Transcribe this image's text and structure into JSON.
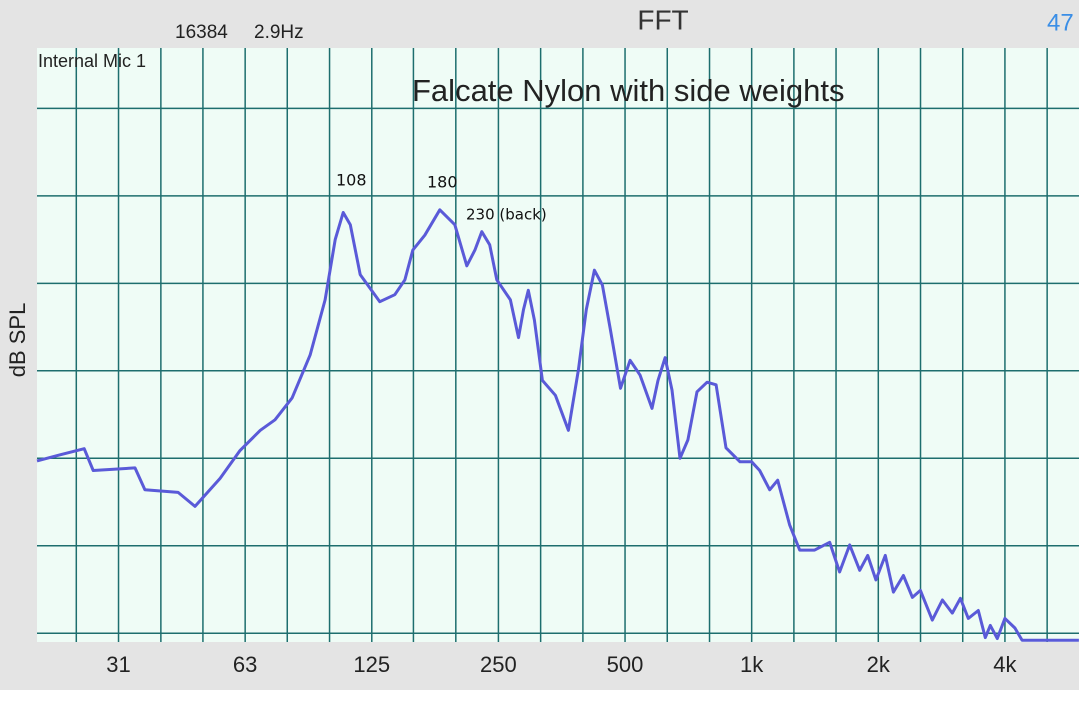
{
  "chart_data": {
    "type": "line",
    "status_left": [
      "16384",
      "2.9Hz"
    ],
    "app_title": "FFT",
    "status_right": "47",
    "input": "Internal Mic 1",
    "title": "Falcate Nylon with side weights",
    "y_label": "dB SPL",
    "annotations": [
      "108",
      "180",
      "230 (back)"
    ],
    "x": [
      20.0,
      22.7,
      25.9,
      27.2,
      34.2,
      36.1,
      43.3,
      47.5,
      54.5,
      60.8,
      67.9,
      73.6,
      80.8,
      89.2,
      96.8,
      102.3,
      106.9,
      111.1,
      117.3,
      130.6,
      141.8,
      149.8,
      156.5,
      167.1,
      181.4,
      196.9,
      210.3,
      219.8,
      228.3,
      238.4,
      247.8,
      267.0,
      279.0,
      286.8,
      294.5,
      304.5,
      318.0,
      341.5,
      366.8,
      387.3,
      404.5,
      422.8,
      441.8,
      461.5,
      487.8,
      514,
      543,
      579.5,
      599,
      622.5,
      646.5,
      675.5,
      705.5,
      741.5,
      783.5,
      823,
      869,
      938,
      1000,
      1045,
      1104,
      1153,
      1231,
      1301,
      1411,
      1533,
      1618,
      1710,
      1806,
      1887,
      1974,
      2078,
      2172,
      2294,
      2410,
      2519,
      2688,
      2840,
      2998,
      3134,
      3274,
      3458,
      3592,
      3692,
      3836,
      4000,
      4224,
      4395,
      5996
    ],
    "values": [
      1.97,
      2.04,
      2.11,
      1.86,
      1.89,
      1.64,
      1.61,
      1.45,
      1.77,
      2.09,
      2.32,
      2.44,
      2.69,
      3.18,
      3.81,
      4.5,
      4.81,
      4.67,
      4.1,
      3.79,
      3.87,
      4.04,
      4.38,
      4.55,
      4.84,
      4.67,
      4.2,
      4.38,
      4.59,
      4.44,
      4.04,
      3.81,
      3.38,
      3.7,
      3.92,
      3.58,
      2.89,
      2.72,
      2.32,
      3.01,
      3.7,
      4.15,
      3.98,
      3.47,
      2.8,
      3.12,
      2.95,
      2.57,
      2.89,
      3.15,
      2.78,
      2.0,
      2.21,
      2.76,
      2.87,
      2.84,
      2.12,
      1.96,
      1.96,
      1.86,
      1.64,
      1.75,
      1.24,
      0.95,
      0.95,
      1.04,
      0.7,
      1.01,
      0.72,
      0.89,
      0.61,
      0.89,
      0.47,
      0.66,
      0.41,
      0.49,
      0.15,
      0.38,
      0.23,
      0.4,
      0.17,
      0.26,
      -0.05,
      0.09,
      -0.06,
      0.17,
      0.06,
      -0.08,
      -0.08
    ],
    "color": "#5a5ad8",
    "grid_color": "#1d6e6e",
    "xscale": "log",
    "xlim": [
      20,
      6000
    ],
    "ylim": [
      -0.1,
      6.69
    ],
    "xticks": [
      {
        "value": 31.25,
        "label": "31"
      },
      {
        "value": 62.5,
        "label": "63"
      },
      125,
      250,
      500,
      {
        "value": 1000,
        "label": "1k"
      },
      {
        "value": 2000,
        "label": "2k"
      },
      {
        "value": 4000,
        "label": "4k"
      }
    ],
    "xgrid": [
      24.8,
      31.25,
      39.4,
      49.6,
      62.5,
      78.7,
      99.2,
      125,
      157,
      198,
      250,
      315,
      397,
      500,
      630,
      794,
      1000,
      1260,
      1587,
      2000,
      2520,
      3175,
      4000,
      5040
    ],
    "ygrid": [
      0,
      1,
      2,
      3,
      4,
      5,
      6
    ]
  }
}
